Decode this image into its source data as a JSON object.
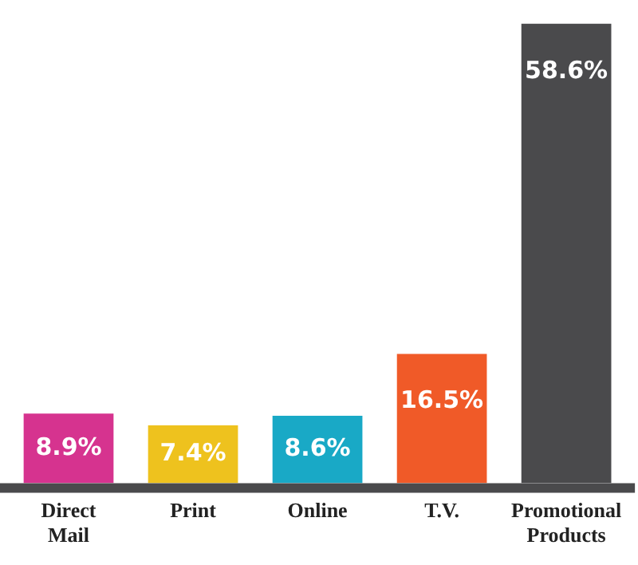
{
  "chart_data": {
    "type": "bar",
    "categories": [
      "Direct Mail",
      "Print",
      "Online",
      "T.V.",
      "Promotional Products"
    ],
    "values": [
      8.9,
      7.4,
      8.6,
      16.5,
      58.6
    ],
    "colors": [
      "#d6338f",
      "#eec21e",
      "#19a9c6",
      "#f05a28",
      "#4a4a4c"
    ],
    "value_labels": [
      "8.9%",
      "7.4%",
      "8.6%",
      "16.5%",
      "58.6%"
    ],
    "grid": false,
    "legend": false
  }
}
